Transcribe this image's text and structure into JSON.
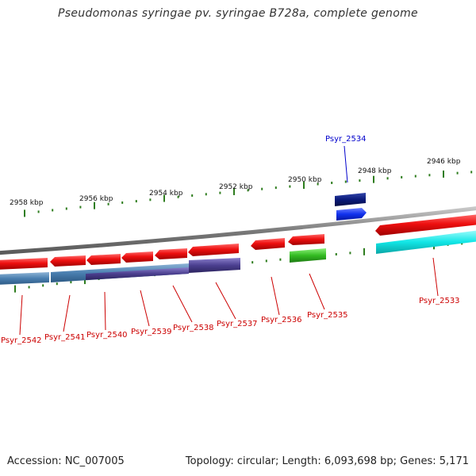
{
  "header": {
    "title": "Pseudomonas syringae pv. syringae B728a, complete genome"
  },
  "footer": {
    "accession": "Accession: NC_007005",
    "stats": "Topology: circular; Length: 6,093,698 bp; Genes: 5,171"
  },
  "colors": {
    "backbone": "#8a8a8a",
    "tick": "#2e7d1e",
    "label_red": "#cc0000",
    "label_blue": "#0000cc",
    "red_gene": "#ee1111",
    "steel_gene": "#4a7fb0",
    "purple_gene": "#4b3f8f",
    "green_gene": "#33bb22",
    "navy_gene": "#0a1a7a",
    "blue_gene": "#1030ee",
    "cyan_gene": "#11e6e6"
  },
  "kbp_labels": [
    {
      "text": "2958 kbp"
    },
    {
      "text": "2956 kbp"
    },
    {
      "text": "2954 kbp"
    },
    {
      "text": "2952 kbp"
    },
    {
      "text": "2950 kbp"
    },
    {
      "text": "2948 kbp"
    },
    {
      "text": "2946 kbp"
    }
  ],
  "genes": [
    {
      "name": "Psyr_2542",
      "color": "red"
    },
    {
      "name": "Psyr_2541",
      "color": "red"
    },
    {
      "name": "Psyr_2540",
      "color": "red"
    },
    {
      "name": "Psyr_2539",
      "color": "red"
    },
    {
      "name": "Psyr_2538",
      "color": "red"
    },
    {
      "name": "Psyr_2537",
      "color": "red"
    },
    {
      "name": "Psyr_2536",
      "color": "red"
    },
    {
      "name": "Psyr_2535",
      "color": "red"
    },
    {
      "name": "Psyr_2534",
      "color": "blue"
    },
    {
      "name": "Psyr_2533",
      "color": "red"
    }
  ]
}
